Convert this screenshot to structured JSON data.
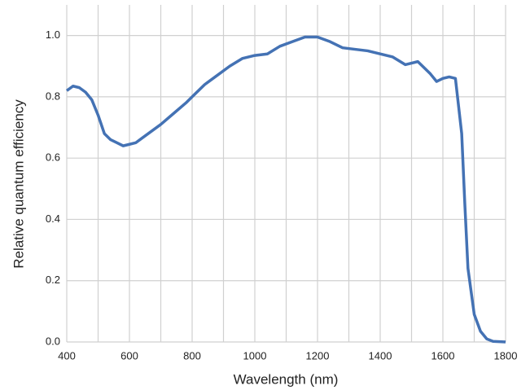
{
  "chart_data": {
    "type": "line",
    "xlabel": "Wavelength (nm)",
    "ylabel": "Relative quantum efficiency",
    "x": [
      400,
      420,
      440,
      460,
      480,
      500,
      520,
      540,
      560,
      580,
      600,
      620,
      640,
      660,
      700,
      740,
      780,
      800,
      840,
      880,
      920,
      960,
      1000,
      1040,
      1080,
      1120,
      1160,
      1200,
      1240,
      1280,
      1320,
      1360,
      1400,
      1440,
      1480,
      1520,
      1560,
      1580,
      1600,
      1620,
      1640,
      1660,
      1670,
      1680,
      1700,
      1720,
      1740,
      1760,
      1800
    ],
    "series": [
      {
        "color": "#4472b4",
        "values": [
          0.82,
          0.835,
          0.83,
          0.815,
          0.79,
          0.74,
          0.68,
          0.66,
          0.65,
          0.64,
          0.645,
          0.65,
          0.665,
          0.68,
          0.71,
          0.745,
          0.78,
          0.8,
          0.84,
          0.87,
          0.9,
          0.925,
          0.935,
          0.94,
          0.965,
          0.98,
          0.995,
          0.995,
          0.98,
          0.96,
          0.955,
          0.95,
          0.94,
          0.93,
          0.905,
          0.915,
          0.875,
          0.85,
          0.86,
          0.865,
          0.86,
          0.68,
          0.45,
          0.24,
          0.09,
          0.035,
          0.01,
          0.002,
          0
        ]
      }
    ],
    "xlim": [
      400,
      1800
    ],
    "xticks": [
      400,
      600,
      800,
      1000,
      1200,
      1400,
      1600,
      1800
    ],
    "xgrid": [
      400,
      500,
      600,
      700,
      800,
      900,
      1000,
      1100,
      1200,
      1300,
      1400,
      1500,
      1600,
      1700,
      1800
    ],
    "ylim": [
      0,
      1.1
    ],
    "yticks": [
      {
        "value": 0,
        "label": "0.0"
      },
      {
        "value": 0.2,
        "label": "0.2"
      },
      {
        "value": 0.4,
        "label": "0.4"
      },
      {
        "value": 0.6,
        "label": "0.6"
      },
      {
        "value": 0.8,
        "label": "0.8"
      },
      {
        "value": 1,
        "label": "1.0"
      }
    ],
    "grid": true
  }
}
